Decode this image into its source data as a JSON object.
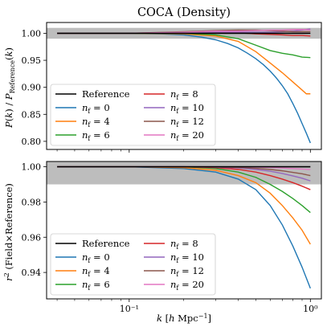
{
  "chart_data": [
    {
      "type": "line",
      "title": "COCA (Density)",
      "ylabel": "P(k) / P_Reference(k)",
      "xlabel": "",
      "xscale": "log",
      "xlim": [
        0.035,
        1.15
      ],
      "ylim": [
        0.785,
        1.02
      ],
      "band": [
        0.99,
        1.01
      ],
      "yticks": [
        "0.80",
        "0.85",
        "0.90",
        "0.95",
        "1.00"
      ],
      "ytick_values": [
        0.8,
        0.85,
        0.9,
        0.95,
        1.0
      ],
      "legend_placement": "lower-left",
      "series": [
        {
          "name": "Reference",
          "color": "#000000",
          "x": [
            0.04,
            0.1,
            0.3,
            1.0
          ],
          "y": [
            1.0,
            1.0,
            1.0,
            1.0
          ]
        },
        {
          "name": "n_f = 0",
          "color": "#1f77b4",
          "x": [
            0.04,
            0.1,
            0.15,
            0.2,
            0.25,
            0.3,
            0.35,
            0.4,
            0.45,
            0.5,
            0.55,
            0.6,
            0.65,
            0.7,
            0.75,
            0.8,
            0.85,
            0.9,
            0.95,
            1.0
          ],
          "y": [
            1.0,
            1.0,
            0.999,
            0.997,
            0.993,
            0.988,
            0.981,
            0.973,
            0.963,
            0.953,
            0.942,
            0.93,
            0.917,
            0.903,
            0.888,
            0.87,
            0.852,
            0.833,
            0.815,
            0.797
          ]
        },
        {
          "name": "n_f = 4",
          "color": "#ff7f0e",
          "x": [
            0.04,
            0.1,
            0.2,
            0.3,
            0.4,
            0.5,
            0.6,
            0.7,
            0.8,
            0.9,
            0.95,
            1.0
          ],
          "y": [
            1.0,
            1.0,
            0.999,
            0.995,
            0.985,
            0.966,
            0.945,
            0.927,
            0.91,
            0.895,
            0.888,
            0.888
          ]
        },
        {
          "name": "n_f = 6",
          "color": "#2ca02c",
          "x": [
            0.04,
            0.1,
            0.2,
            0.3,
            0.4,
            0.5,
            0.6,
            0.7,
            0.8,
            0.9,
            1.0
          ],
          "y": [
            1.0,
            1.0,
            1.0,
            0.997,
            0.99,
            0.978,
            0.968,
            0.963,
            0.96,
            0.956,
            0.955
          ]
        },
        {
          "name": "n_f = 8",
          "color": "#d62728",
          "x": [
            0.04,
            0.1,
            0.2,
            0.3,
            0.4,
            0.5,
            0.6,
            0.7,
            0.8,
            0.9,
            1.0
          ],
          "y": [
            1.0,
            1.0,
            1.001,
            1.002,
            1.001,
            0.999,
            0.998,
            0.997,
            0.996,
            0.996,
            0.995
          ]
        },
        {
          "name": "n_f = 10",
          "color": "#9467bd",
          "x": [
            0.04,
            0.1,
            0.2,
            0.3,
            0.4,
            0.5,
            0.6,
            0.7,
            0.8,
            0.9,
            1.0
          ],
          "y": [
            1.0,
            1.0,
            1.001,
            1.002,
            1.002,
            1.002,
            1.002,
            1.003,
            1.004,
            1.006,
            1.008
          ]
        },
        {
          "name": "n_f = 12",
          "color": "#8c564b",
          "x": [
            0.04,
            0.1,
            0.2,
            0.3,
            0.4,
            0.5,
            0.6,
            0.7,
            0.8,
            0.9,
            1.0
          ],
          "y": [
            1.0,
            1.0,
            1.003,
            1.005,
            1.006,
            1.006,
            1.005,
            1.004,
            1.003,
            1.003,
            1.003
          ]
        },
        {
          "name": "n_f = 20",
          "color": "#e377c2",
          "x": [
            0.04,
            0.1,
            0.2,
            0.3,
            0.4,
            0.5,
            0.6,
            0.7,
            0.8,
            0.9,
            1.0
          ],
          "y": [
            1.0,
            1.0,
            1.002,
            1.004,
            1.004,
            1.005,
            1.006,
            1.006,
            1.007,
            1.007,
            1.006
          ]
        }
      ]
    },
    {
      "type": "line",
      "title": "",
      "ylabel": "r² (Field×Reference)",
      "xlabel": "k [h Mpc⁻¹]",
      "xscale": "log",
      "xlim": [
        0.035,
        1.15
      ],
      "ylim": [
        0.925,
        1.003
      ],
      "band": [
        0.99,
        1.01
      ],
      "xticks": [
        "10⁻¹",
        "10⁰"
      ],
      "xtick_values": [
        0.1,
        1.0
      ],
      "yticks": [
        "0.94",
        "0.96",
        "0.98",
        "1.00"
      ],
      "ytick_values": [
        0.94,
        0.96,
        0.98,
        1.0
      ],
      "legend_placement": "lower-left",
      "series": [
        {
          "name": "Reference",
          "color": "#000000",
          "x": [
            0.04,
            0.1,
            0.3,
            1.0
          ],
          "y": [
            1.0,
            1.0,
            1.0,
            1.0
          ]
        },
        {
          "name": "n_f = 0",
          "color": "#1f77b4",
          "x": [
            0.04,
            0.1,
            0.2,
            0.3,
            0.4,
            0.5,
            0.6,
            0.7,
            0.8,
            0.9,
            1.0
          ],
          "y": [
            1.0,
            1.0,
            0.999,
            0.997,
            0.993,
            0.987,
            0.978,
            0.967,
            0.955,
            0.943,
            0.931
          ]
        },
        {
          "name": "n_f = 4",
          "color": "#ff7f0e",
          "x": [
            0.04,
            0.1,
            0.2,
            0.3,
            0.4,
            0.5,
            0.6,
            0.7,
            0.8,
            0.9,
            1.0
          ],
          "y": [
            1.0,
            1.0,
            0.9995,
            0.998,
            0.995,
            0.991,
            0.985,
            0.978,
            0.971,
            0.964,
            0.956
          ]
        },
        {
          "name": "n_f = 6",
          "color": "#2ca02c",
          "x": [
            0.04,
            0.1,
            0.2,
            0.3,
            0.4,
            0.5,
            0.6,
            0.7,
            0.8,
            0.9,
            1.0
          ],
          "y": [
            1.0,
            1.0,
            1.0,
            0.999,
            0.997,
            0.994,
            0.99,
            0.986,
            0.982,
            0.978,
            0.974
          ]
        },
        {
          "name": "n_f = 8",
          "color": "#d62728",
          "x": [
            0.04,
            0.1,
            0.2,
            0.3,
            0.4,
            0.5,
            0.6,
            0.7,
            0.8,
            0.9,
            1.0
          ],
          "y": [
            1.0,
            1.0,
            1.0,
            0.9995,
            0.9985,
            0.997,
            0.995,
            0.993,
            0.991,
            0.989,
            0.987
          ]
        },
        {
          "name": "n_f = 10",
          "color": "#9467bd",
          "x": [
            0.04,
            0.1,
            0.2,
            0.3,
            0.4,
            0.5,
            0.6,
            0.7,
            0.8,
            0.9,
            1.0
          ],
          "y": [
            1.0,
            1.0,
            1.0,
            0.9998,
            0.9993,
            0.9985,
            0.9975,
            0.9962,
            0.9948,
            0.9935,
            0.992
          ]
        },
        {
          "name": "n_f = 12",
          "color": "#8c564b",
          "x": [
            0.04,
            0.1,
            0.2,
            0.3,
            0.4,
            0.5,
            0.6,
            0.7,
            0.8,
            0.9,
            1.0
          ],
          "y": [
            1.0,
            1.0,
            1.0,
            0.9999,
            0.9996,
            0.9991,
            0.9985,
            0.9977,
            0.9968,
            0.996,
            0.995
          ]
        },
        {
          "name": "n_f = 20",
          "color": "#e377c2",
          "x": [
            0.04,
            0.1,
            0.2,
            0.3,
            0.4,
            0.5,
            0.6,
            0.7,
            0.8,
            0.9,
            1.0
          ],
          "y": [
            1.0,
            1.0,
            1.0,
            1.0,
            0.9999,
            0.9998,
            0.9996,
            0.9993,
            0.999,
            0.9987,
            0.9984
          ]
        }
      ]
    }
  ]
}
